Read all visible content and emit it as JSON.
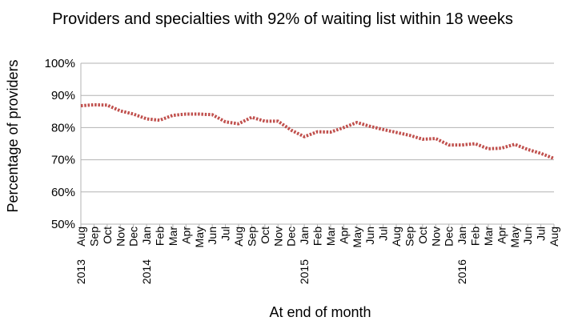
{
  "chart_data": {
    "type": "line",
    "title": "Providers and specialties with 92% of waiting list within 18 weeks",
    "xlabel": "At end of month",
    "ylabel": "Percentage of providers",
    "ylim": [
      50,
      100
    ],
    "yticks": [
      "50%",
      "60%",
      "70%",
      "80%",
      "90%",
      "100%"
    ],
    "grid": "horizontal",
    "legend": "none",
    "line_color": "#C0504D",
    "line_style": "dotted",
    "x": [
      "Aug",
      "Sep",
      "Oct",
      "Nov",
      "Dec",
      "Jan",
      "Feb",
      "Mar",
      "Apr",
      "May",
      "Jun",
      "Jul",
      "Aug",
      "Sep",
      "Oct",
      "Nov",
      "Dec",
      "Jan",
      "Feb",
      "Mar",
      "Apr",
      "May",
      "Jun",
      "Jul",
      "Aug",
      "Sep",
      "Oct",
      "Nov",
      "Dec",
      "Jan",
      "Feb",
      "Mar",
      "Apr",
      "May",
      "Jun",
      "Jul",
      "Aug"
    ],
    "year_labels": [
      {
        "index": 0,
        "label": "2013"
      },
      {
        "index": 5,
        "label": "2014"
      },
      {
        "index": 17,
        "label": "2015"
      },
      {
        "index": 29,
        "label": "2016"
      }
    ],
    "series": [
      {
        "values": [
          86.8,
          87.1,
          87.0,
          85.2,
          84.2,
          82.7,
          82.3,
          83.8,
          84.2,
          84.2,
          84.0,
          81.8,
          81.2,
          83.2,
          82.0,
          82.0,
          79.2,
          77.2,
          78.7,
          78.6,
          80.0,
          81.6,
          80.4,
          79.4,
          78.5,
          77.6,
          76.4,
          76.6,
          74.6,
          74.6,
          75.0,
          73.4,
          73.6,
          74.8,
          73.2,
          72.0,
          70.4
        ]
      }
    ]
  }
}
